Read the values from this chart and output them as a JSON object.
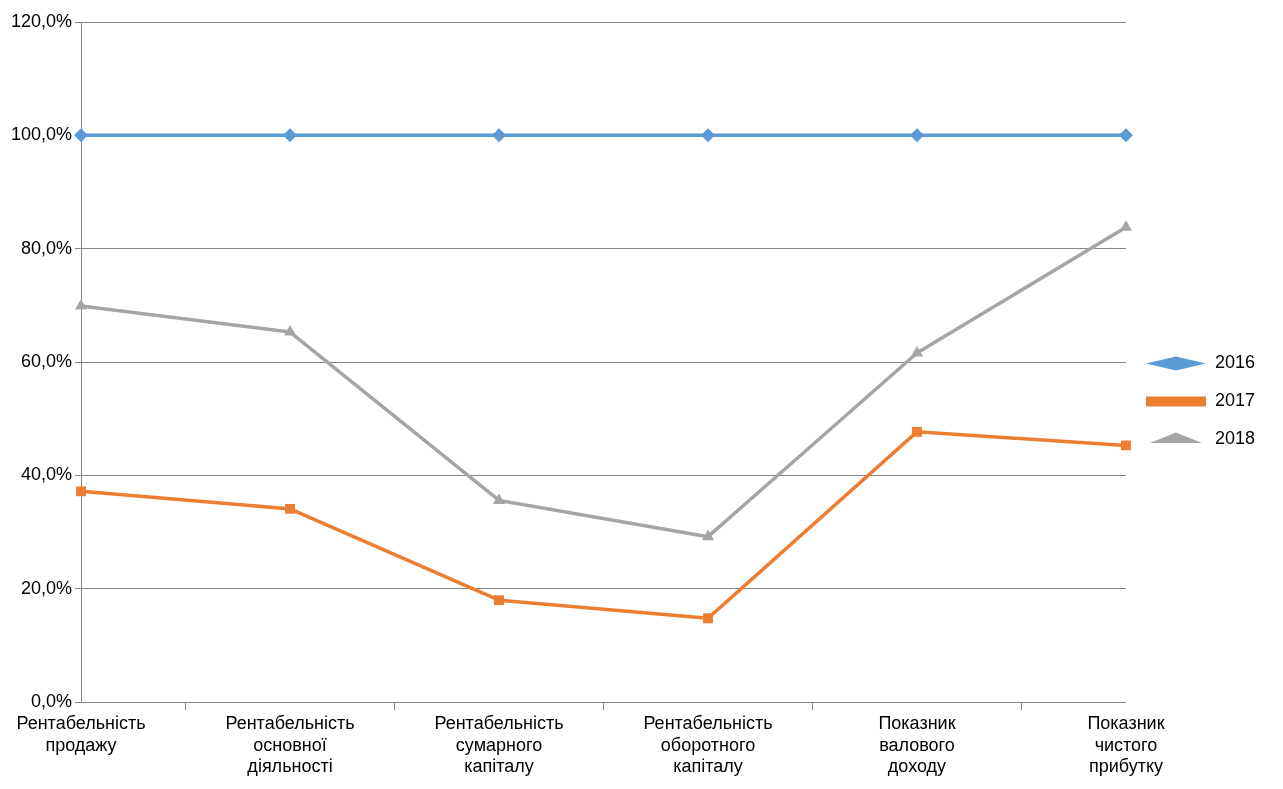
{
  "chart_data": {
    "type": "line",
    "categories": [
      "Рентабельність продажу",
      "Рентабельність основної діяльності",
      "Рентабельність сумарного капіталу",
      "Рентабельність оборотного капіталу",
      "Показник валового доходу",
      "Показник чистого прибутку"
    ],
    "series": [
      {
        "name": "2016",
        "color": "#5b9bd5",
        "marker": "diamond",
        "values": [
          100,
          100,
          100,
          100,
          100,
          100
        ]
      },
      {
        "name": "2017",
        "color": "#ed7d31",
        "marker": "square",
        "values": [
          37.2,
          34.1,
          18.0,
          14.8,
          47.7,
          45.3
        ]
      },
      {
        "name": "2018",
        "color": "#a5a5a5",
        "marker": "triangle",
        "values": [
          69.9,
          65.3,
          35.6,
          29.2,
          61.6,
          83.8
        ]
      }
    ],
    "ylim": [
      0,
      120
    ],
    "yticks": [
      {
        "value": 0,
        "label": "0,0%"
      },
      {
        "value": 20,
        "label": "20,0%"
      },
      {
        "value": 40,
        "label": "40,0%"
      },
      {
        "value": 60,
        "label": "60,0%"
      },
      {
        "value": 80,
        "label": "80,0%"
      },
      {
        "value": 100,
        "label": "100,0%"
      },
      {
        "value": 120,
        "label": "120,0%"
      }
    ],
    "grid": "y",
    "legend": "right",
    "line_style": "solid"
  }
}
